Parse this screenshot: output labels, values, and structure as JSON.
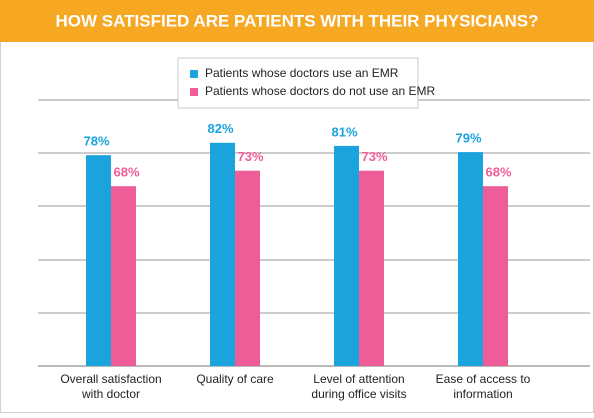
{
  "chart_data": {
    "type": "bar",
    "title": "HOW SATISFIED ARE PATIENTS WITH THEIR PHYSICIANS?",
    "categories": [
      [
        "Overall satisfaction",
        "with doctor"
      ],
      [
        "Quality of care"
      ],
      [
        "Level of attention",
        "during office visits"
      ],
      [
        "Ease of access to",
        "information"
      ]
    ],
    "series": [
      {
        "name": "Patients whose doctors use an EMR",
        "color": "#1ba3dd",
        "values": [
          78,
          82,
          81,
          79
        ],
        "value_labels": [
          "78%",
          "82%",
          "81%",
          "79%"
        ]
      },
      {
        "name": "Patients whose doctors do not use an EMR",
        "color": "#ef5d98",
        "values": [
          68,
          73,
          73,
          68
        ],
        "value_labels": [
          "68%",
          "73%",
          "73%",
          "68%"
        ]
      }
    ],
    "ylim": [
      10,
      100
    ],
    "grid": true
  }
}
